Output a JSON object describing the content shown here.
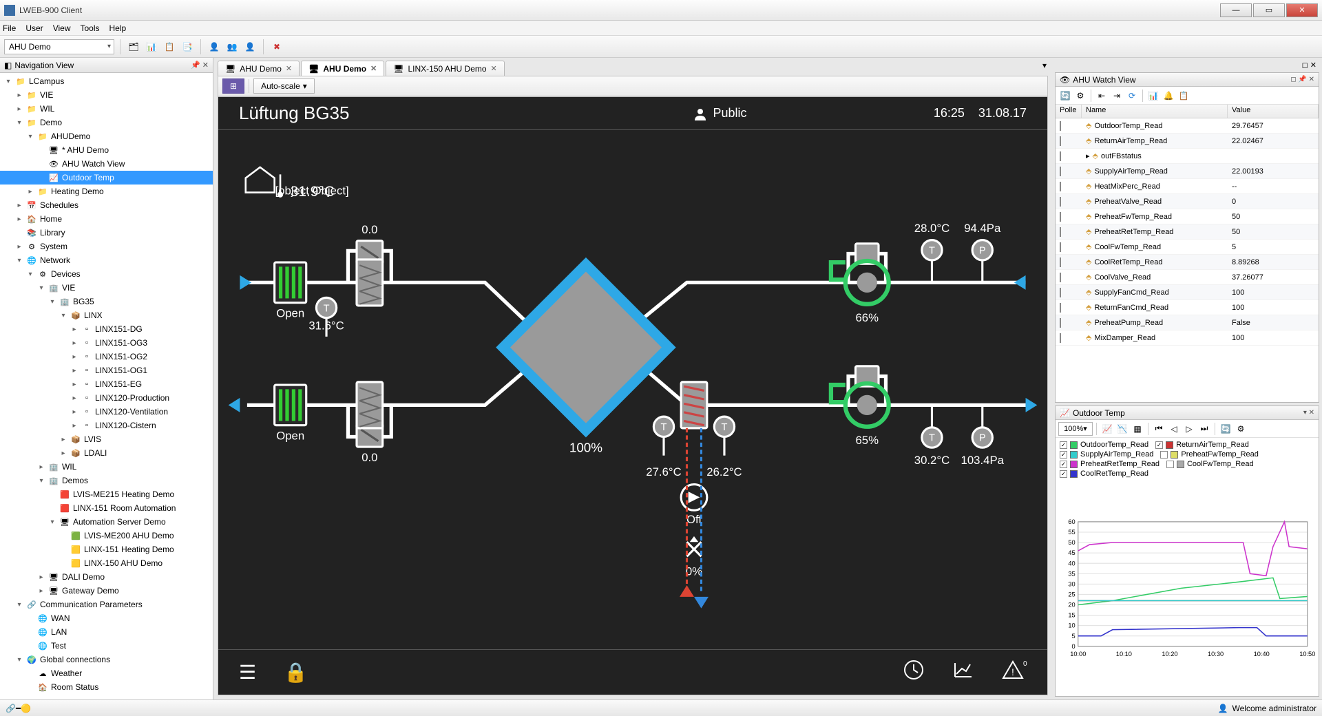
{
  "app": {
    "title": "LWEB-900 Client"
  },
  "menubar": [
    "File",
    "User",
    "View",
    "Tools",
    "Help"
  ],
  "toolbar": {
    "combo": "AHU Demo"
  },
  "nav": {
    "title": "Navigation View",
    "tree": [
      {
        "indent": 0,
        "exp": "▾",
        "icon": "📁",
        "label": "LCampus",
        "color": "#f0a030"
      },
      {
        "indent": 1,
        "exp": "▸",
        "icon": "📁",
        "label": "VIE",
        "color": "#f0c060"
      },
      {
        "indent": 1,
        "exp": "▸",
        "icon": "📁",
        "label": "WIL",
        "color": "#f0c060"
      },
      {
        "indent": 1,
        "exp": "▾",
        "icon": "📁",
        "label": "Demo",
        "color": "#f0c060"
      },
      {
        "indent": 2,
        "exp": "▾",
        "icon": "📁",
        "label": "AHUDemo",
        "color": "#f0c060"
      },
      {
        "indent": 3,
        "exp": "",
        "icon": "🖥",
        "label": "* AHU Demo",
        "color": "#4a7ab8"
      },
      {
        "indent": 3,
        "exp": "",
        "icon": "👁",
        "label": "AHU Watch View",
        "color": "#5a9a5a"
      },
      {
        "indent": 3,
        "exp": "",
        "icon": "📈",
        "label": "Outdoor Temp",
        "selected": true
      },
      {
        "indent": 2,
        "exp": "▸",
        "icon": "📁",
        "label": "Heating Demo",
        "color": "#f0c060"
      },
      {
        "indent": 1,
        "exp": "▸",
        "icon": "📅",
        "label": "Schedules",
        "color": "#6a8aaa"
      },
      {
        "indent": 1,
        "exp": "▸",
        "icon": "🏠",
        "label": "Home",
        "color": "#7aaa5a"
      },
      {
        "indent": 1,
        "exp": "",
        "icon": "📚",
        "label": "Library",
        "color": "#aa7a5a"
      },
      {
        "indent": 1,
        "exp": "▸",
        "icon": "⚙",
        "label": "System",
        "color": "#888"
      },
      {
        "indent": 1,
        "exp": "▾",
        "icon": "🌐",
        "label": "Network",
        "color": "#5a8aaa"
      },
      {
        "indent": 2,
        "exp": "▾",
        "icon": "⚙",
        "label": "Devices",
        "color": "#888"
      },
      {
        "indent": 3,
        "exp": "▾",
        "icon": "🏢",
        "label": "VIE",
        "color": "#6a9a9a"
      },
      {
        "indent": 4,
        "exp": "▾",
        "icon": "🏢",
        "label": "BG35",
        "color": "#6a9a9a"
      },
      {
        "indent": 5,
        "exp": "▾",
        "icon": "📦",
        "label": "LINX",
        "color": "#8a8a8a"
      },
      {
        "indent": 6,
        "exp": "▸",
        "icon": "▫",
        "label": "LINX151-DG"
      },
      {
        "indent": 6,
        "exp": "▸",
        "icon": "▫",
        "label": "LINX151-OG3"
      },
      {
        "indent": 6,
        "exp": "▸",
        "icon": "▫",
        "label": "LINX151-OG2"
      },
      {
        "indent": 6,
        "exp": "▸",
        "icon": "▫",
        "label": "LINX151-OG1"
      },
      {
        "indent": 6,
        "exp": "▸",
        "icon": "▫",
        "label": "LINX151-EG"
      },
      {
        "indent": 6,
        "exp": "▸",
        "icon": "▫",
        "label": "LINX120-Production"
      },
      {
        "indent": 6,
        "exp": "▸",
        "icon": "▫",
        "label": "LINX120-Ventilation"
      },
      {
        "indent": 6,
        "exp": "▸",
        "icon": "▫",
        "label": "LINX120-Cistern"
      },
      {
        "indent": 5,
        "exp": "▸",
        "icon": "📦",
        "label": "LVIS"
      },
      {
        "indent": 5,
        "exp": "▸",
        "icon": "📦",
        "label": "LDALI"
      },
      {
        "indent": 3,
        "exp": "▸",
        "icon": "🏢",
        "label": "WIL"
      },
      {
        "indent": 3,
        "exp": "▾",
        "icon": "🏢",
        "label": "Demos"
      },
      {
        "indent": 4,
        "exp": "",
        "icon": "🟥",
        "label": "LVIS-ME215 Heating Demo"
      },
      {
        "indent": 4,
        "exp": "",
        "icon": "🟥",
        "label": "LINX-151 Room Automation"
      },
      {
        "indent": 4,
        "exp": "▾",
        "icon": "🖥",
        "label": "Automation Server Demo"
      },
      {
        "indent": 5,
        "exp": "",
        "icon": "🟩",
        "label": "LVIS-ME200 AHU Demo"
      },
      {
        "indent": 5,
        "exp": "",
        "icon": "🟨",
        "label": "LINX-151 Heating Demo"
      },
      {
        "indent": 5,
        "exp": "",
        "icon": "🟨",
        "label": "LINX-150 AHU Demo"
      },
      {
        "indent": 3,
        "exp": "▸",
        "icon": "🖥",
        "label": "DALI Demo"
      },
      {
        "indent": 3,
        "exp": "▸",
        "icon": "🖥",
        "label": "Gateway Demo"
      },
      {
        "indent": 1,
        "exp": "▾",
        "icon": "🔗",
        "label": "Communication Parameters"
      },
      {
        "indent": 2,
        "exp": "",
        "icon": "🌐",
        "label": "WAN"
      },
      {
        "indent": 2,
        "exp": "",
        "icon": "🌐",
        "label": "LAN"
      },
      {
        "indent": 2,
        "exp": "",
        "icon": "🌐",
        "label": "Test"
      },
      {
        "indent": 1,
        "exp": "▾",
        "icon": "🌍",
        "label": "Global connections"
      },
      {
        "indent": 2,
        "exp": "",
        "icon": "☁",
        "label": "Weather"
      },
      {
        "indent": 2,
        "exp": "",
        "icon": "🏠",
        "label": "Room Status"
      }
    ]
  },
  "tabs": [
    {
      "label": "AHU Demo",
      "active": false
    },
    {
      "label": "AHU Demo",
      "active": true
    },
    {
      "label": "LINX-150 AHU Demo",
      "active": false
    }
  ],
  "innerToolbar": {
    "autoScale": "Auto-scale"
  },
  "canvas": {
    "title": "Lüftung BG35",
    "public": "Public",
    "time": "16:25",
    "date": "31.08.17",
    "outdoorTemp": "31.9°C",
    "values": {
      "damperTop": "0.0",
      "damperBot": "0.0",
      "damperState1": "Open",
      "damperState2": "Open",
      "tempIn": "31.6°C",
      "hxPerc": "100%",
      "tPre": "27.6°C",
      "tPost": "26.2°C",
      "pump": "Off",
      "valve": "0%",
      "fan1": "66%",
      "fan2": "65%",
      "tReturn": "28.0°C",
      "pReturn": "94.4Pa",
      "tSupply": "30.2°C",
      "pSupply": "103.4Pa"
    },
    "colors": {
      "bg": "#222222",
      "pipe": "#ffffff",
      "hx": "#2ea8e6",
      "fan": "#33cc66",
      "grey": "#9a9a9a"
    }
  },
  "watch": {
    "title": "AHU Watch View",
    "cols": {
      "poll": "Polle",
      "name": "Name",
      "value": "Value"
    },
    "rows": [
      {
        "name": "OutdoorTemp_Read",
        "value": "29.76457"
      },
      {
        "name": "ReturnAirTemp_Read",
        "value": "22.02467"
      },
      {
        "name": "outFBstatus",
        "value": "",
        "expand": true
      },
      {
        "name": "SupplyAirTemp_Read",
        "value": "22.00193"
      },
      {
        "name": "HeatMixPerc_Read",
        "value": "--"
      },
      {
        "name": "PreheatValve_Read",
        "value": "0"
      },
      {
        "name": "PreheatFwTemp_Read",
        "value": "50"
      },
      {
        "name": "PreheatRetTemp_Read",
        "value": "50"
      },
      {
        "name": "CoolFwTemp_Read",
        "value": "5"
      },
      {
        "name": "CoolRetTemp_Read",
        "value": "8.89268"
      },
      {
        "name": "CoolValve_Read",
        "value": "37.26077"
      },
      {
        "name": "SupplyFanCmd_Read",
        "value": "100"
      },
      {
        "name": "ReturnFanCmd_Read",
        "value": "100"
      },
      {
        "name": "PreheatPump_Read",
        "value": "False"
      },
      {
        "name": "MixDamper_Read",
        "value": "100"
      }
    ]
  },
  "tempPanel": {
    "title": "Outdoor Temp",
    "zoom": "100%",
    "legend": [
      {
        "color": "#33cc66",
        "label": "OutdoorTemp_Read",
        "checked": true
      },
      {
        "color": "#cc3333",
        "label": "ReturnAirTemp_Read",
        "checked": true
      },
      {
        "color": "#33cccc",
        "label": "SupplyAirTemp_Read",
        "checked": true
      },
      {
        "color": "#dddd66",
        "label": "PreheatFwTemp_Read",
        "checked": false
      },
      {
        "color": "#cc33cc",
        "label": "PreheatRetTemp_Read",
        "checked": true
      },
      {
        "color": "#aaaaaa",
        "label": "CoolFwTemp_Read",
        "checked": false
      },
      {
        "color": "#3333cc",
        "label": "CoolRetTemp_Read",
        "checked": true
      }
    ],
    "chart": {
      "ylim": [
        0,
        60
      ],
      "ytick": 5,
      "xticks": [
        "10:00",
        "10:10",
        "10:20",
        "10:30",
        "10:40",
        "10:50"
      ],
      "series": {
        "OutdoorTemp_Read": {
          "color": "#33cc66",
          "points": [
            [
              0,
              20
            ],
            [
              0.15,
              22
            ],
            [
              0.45,
              28
            ],
            [
              0.7,
              31
            ],
            [
              0.85,
              33
            ],
            [
              0.88,
              23
            ],
            [
              1,
              24
            ]
          ]
        },
        "ReturnAirTemp_Read": {
          "color": "#cc3333",
          "points": [
            [
              0,
              22
            ],
            [
              1,
              22
            ]
          ]
        },
        "SupplyAirTemp_Read": {
          "color": "#33cccc",
          "points": [
            [
              0,
              22
            ],
            [
              1,
              22
            ]
          ]
        },
        "PreheatRetTemp_Read": {
          "color": "#cc33cc",
          "points": [
            [
              0,
              46
            ],
            [
              0.05,
              49
            ],
            [
              0.15,
              50
            ],
            [
              0.72,
              50
            ],
            [
              0.75,
              35
            ],
            [
              0.82,
              34
            ],
            [
              0.85,
              48
            ],
            [
              0.9,
              60
            ],
            [
              0.92,
              48
            ],
            [
              1,
              47
            ]
          ]
        },
        "CoolRetTemp_Read": {
          "color": "#3333cc",
          "points": [
            [
              0,
              5
            ],
            [
              0.1,
              5
            ],
            [
              0.15,
              8
            ],
            [
              0.7,
              9
            ],
            [
              0.78,
              9
            ],
            [
              0.82,
              5
            ],
            [
              1,
              5
            ]
          ]
        }
      }
    }
  },
  "statusbar": {
    "welcome": "Welcome administrator"
  }
}
